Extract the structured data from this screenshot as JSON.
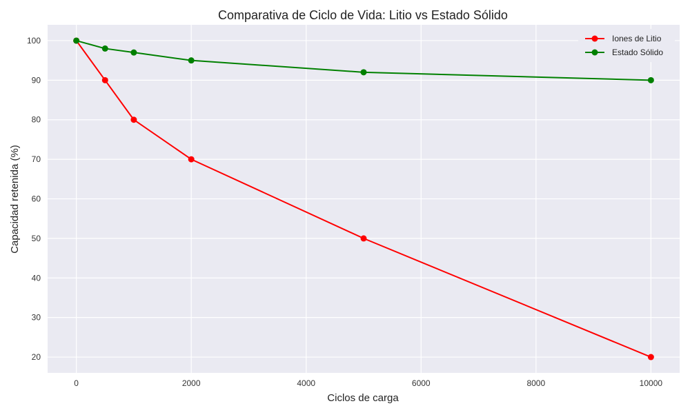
{
  "chart_data": {
    "type": "line",
    "title": "Comparativa de Ciclo de Vida: Litio vs Estado Sólido",
    "xlabel": "Ciclos de carga",
    "ylabel": "Capacidad retenida (%)",
    "x": [
      0,
      500,
      1000,
      2000,
      5000,
      10000
    ],
    "series": [
      {
        "name": "Iones de Litio",
        "values": [
          100,
          90,
          80,
          70,
          50,
          20
        ],
        "color": "#ff0000"
      },
      {
        "name": "Estado Sólido",
        "values": [
          100,
          98,
          97,
          95,
          92,
          90
        ],
        "color": "#008000"
      }
    ],
    "xlim": [
      -500,
      10500
    ],
    "ylim": [
      16,
      104
    ],
    "xticks": [
      0,
      2000,
      4000,
      6000,
      8000,
      10000
    ],
    "yticks": [
      20,
      30,
      40,
      50,
      60,
      70,
      80,
      90,
      100
    ],
    "grid": true,
    "legend_position": "top-right",
    "plot_background": "#eaeaf2",
    "grid_color": "#ffffff"
  }
}
